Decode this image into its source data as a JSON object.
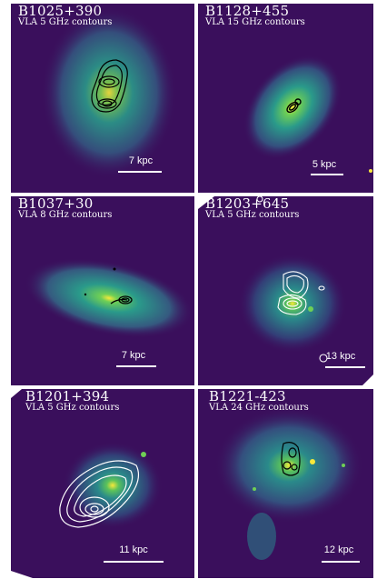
{
  "panels": [
    {
      "title": "B1025+390",
      "subtitle": "VLA 5 GHz contours",
      "scale": "7 kpc"
    },
    {
      "title": "B1128+455",
      "subtitle": "VLA 15 GHz contours",
      "scale": "5 kpc"
    },
    {
      "title": "B1037+30",
      "subtitle": "VLA 8 GHz contours",
      "scale": "7 kpc"
    },
    {
      "title": "B1203+645",
      "subtitle": "VLA 5 GHz contours",
      "scale": "13 kpc"
    },
    {
      "title": "B1201+394",
      "subtitle": "VLA 5 GHz contours",
      "scale": "11 kpc"
    },
    {
      "title": "B1221-423",
      "subtitle": "VLA 24 GHz contours",
      "scale": "12 kpc"
    }
  ],
  "colors": {
    "background": "#3a0f5c",
    "halo": "#2f8f8c",
    "core": "#f6e83a",
    "contours_dark": "#000000",
    "contours_light": "#ffffff"
  }
}
